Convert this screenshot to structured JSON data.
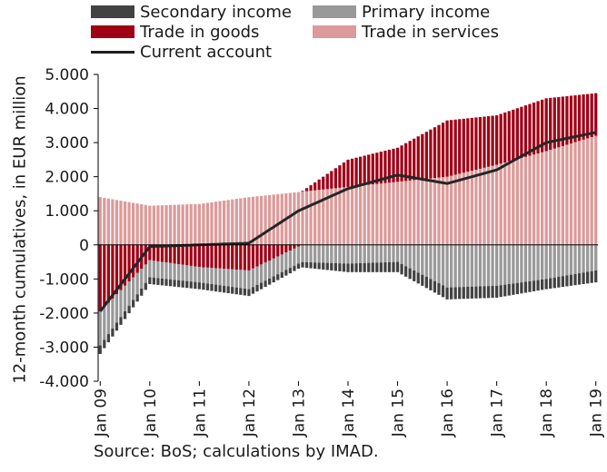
{
  "legend": {
    "secondary_income": "Secondary income",
    "primary_income": "Primary income",
    "trade_goods": "Trade in goods",
    "trade_services": "Trade in services",
    "current_account": "Current account"
  },
  "source": "Source: BoS; calculations by IMAD.",
  "colors": {
    "secondary_income": "#424242",
    "primary_income": "#999999",
    "trade_goods": "#a00016",
    "trade_services": "#dc9a9a",
    "current_account": "#262626",
    "axis": "#000000"
  },
  "chart_data": {
    "type": "bar",
    "stacked": true,
    "title": "",
    "xlabel": "",
    "ylabel": "12-month cumulatives, in EUR million",
    "ylim": [
      -4000,
      5000
    ],
    "ytick_labels": [
      "5.000",
      "4.000",
      "3.000",
      "2.000",
      "1.000",
      "0",
      "-1.000",
      "-2.000",
      "-3.000",
      "-4.000"
    ],
    "ytick_values": [
      5000,
      4000,
      3000,
      2000,
      1000,
      0,
      -1000,
      -2000,
      -3000,
      -4000
    ],
    "xtick_labels": [
      "Jan 09",
      "Jan 10",
      "Jan 11",
      "Jan 12",
      "Jan 13",
      "Jan 14",
      "Jan 15",
      "Jan 16",
      "Jan 17",
      "Jan 18",
      "Jan 19"
    ],
    "periods": "monthly, Jan 2009 - Jan 2019",
    "grid": false,
    "legend_position": "top",
    "series": [
      {
        "name": "Trade in services",
        "kind": "bar",
        "x": [
          "2009-01",
          "2010-01",
          "2011-01",
          "2012-01",
          "2013-01",
          "2014-01",
          "2015-01",
          "2016-01",
          "2017-01",
          "2018-01",
          "2019-01"
        ],
        "values": [
          1400,
          1150,
          1200,
          1400,
          1550,
          1700,
          1850,
          2000,
          2350,
          2750,
          3200
        ]
      },
      {
        "name": "Trade in goods",
        "kind": "bar",
        "x": [
          "2009-01",
          "2010-01",
          "2011-01",
          "2012-01",
          "2013-01",
          "2014-01",
          "2015-01",
          "2016-01",
          "2017-01",
          "2018-01",
          "2019-01"
        ],
        "values": [
          -1950,
          -450,
          -650,
          -750,
          -50,
          800,
          1000,
          1650,
          1450,
          1550,
          1250
        ]
      },
      {
        "name": "Primary income",
        "kind": "bar",
        "x": [
          "2009-01",
          "2010-01",
          "2011-01",
          "2012-01",
          "2013-01",
          "2014-01",
          "2015-01",
          "2016-01",
          "2017-01",
          "2018-01",
          "2019-01"
        ],
        "values": [
          -1000,
          -500,
          -450,
          -550,
          -500,
          -550,
          -500,
          -1250,
          -1200,
          -1000,
          -750
        ]
      },
      {
        "name": "Secondary income",
        "kind": "bar",
        "x": [
          "2009-01",
          "2010-01",
          "2011-01",
          "2012-01",
          "2013-01",
          "2014-01",
          "2015-01",
          "2016-01",
          "2017-01",
          "2018-01",
          "2019-01"
        ],
        "values": [
          -250,
          -200,
          -200,
          -200,
          -150,
          -250,
          -300,
          -350,
          -350,
          -300,
          -350
        ]
      },
      {
        "name": "Current account",
        "kind": "line",
        "x": [
          "2009-01",
          "2010-01",
          "2011-01",
          "2012-01",
          "2013-01",
          "2014-01",
          "2015-01",
          "2016-01",
          "2017-01",
          "2018-01",
          "2019-01"
        ],
        "values": [
          -1950,
          -50,
          0,
          50,
          1000,
          1650,
          2050,
          1800,
          2200,
          3000,
          3300
        ]
      }
    ]
  }
}
